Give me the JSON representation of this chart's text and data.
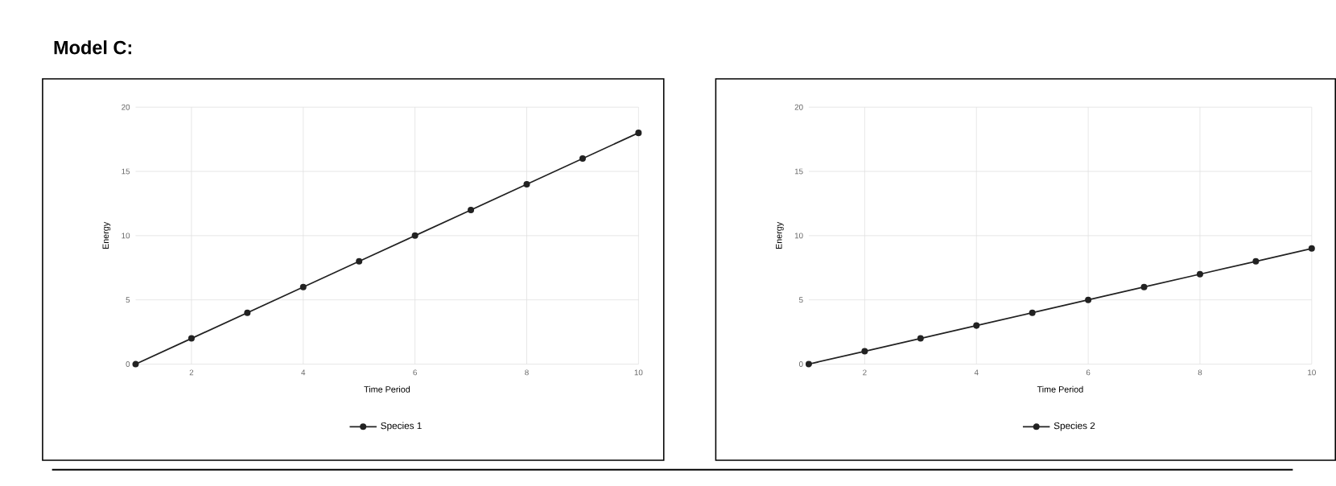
{
  "chart_data": [
    {
      "type": "line",
      "title": "Model C:",
      "xlabel": "Time Period",
      "ylabel": "Energy",
      "x": [
        1,
        2,
        3,
        4,
        5,
        6,
        7,
        8,
        9,
        10
      ],
      "series": [
        {
          "name": "Species 1",
          "color": "#222222",
          "values": [
            0,
            2,
            4,
            6,
            8,
            10,
            12,
            14,
            16,
            18
          ]
        }
      ],
      "xlim": [
        1,
        10
      ],
      "ylim": [
        0,
        20
      ],
      "xticks": [
        2,
        4,
        6,
        8,
        10
      ],
      "yticks": [
        0,
        5,
        10,
        15,
        20
      ],
      "grid": true,
      "legend": "bottom",
      "marker": "circle"
    },
    {
      "type": "line",
      "xlabel": "Time Period",
      "ylabel": "Energy",
      "x": [
        1,
        2,
        3,
        4,
        5,
        6,
        7,
        8,
        9,
        10
      ],
      "series": [
        {
          "name": "Species 2",
          "color": "#222222",
          "values": [
            0,
            1,
            2,
            3,
            4,
            5,
            6,
            7,
            8,
            9
          ]
        }
      ],
      "xlim": [
        1,
        10
      ],
      "ylim": [
        0,
        20
      ],
      "xticks": [
        2,
        4,
        6,
        8,
        10
      ],
      "yticks": [
        0,
        5,
        10,
        15,
        20
      ],
      "grid": true,
      "legend": "bottom",
      "marker": "circle"
    }
  ]
}
